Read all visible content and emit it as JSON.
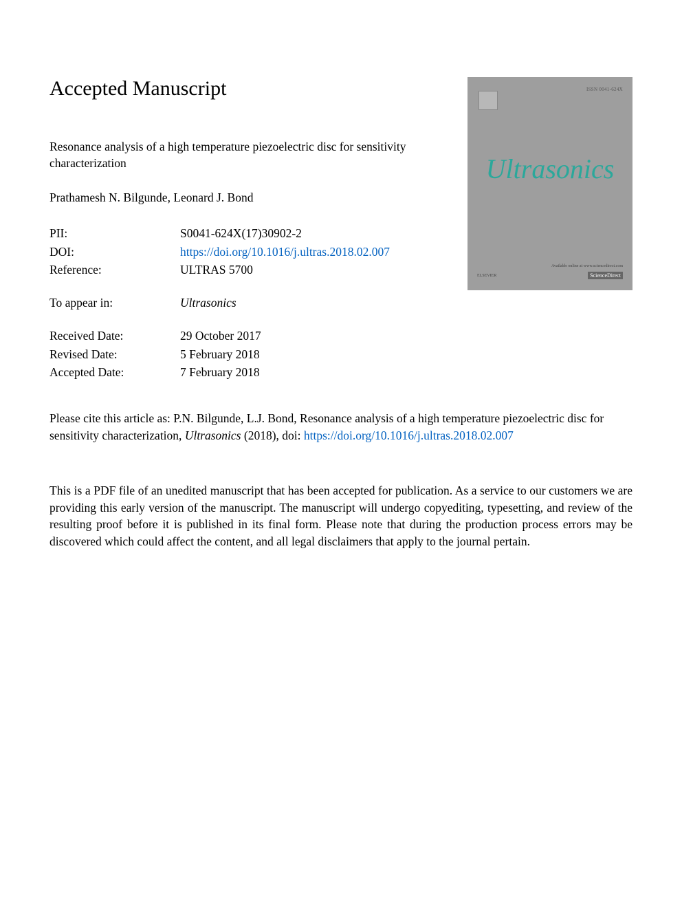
{
  "header": {
    "title": "Accepted Manuscript"
  },
  "article": {
    "title": "Resonance analysis of a high temperature piezoelectric disc for sensitivity characterization",
    "authors": "Prathamesh N. Bilgunde, Leonard J. Bond"
  },
  "meta": {
    "pii": {
      "label": "PII:",
      "value": "S0041-624X(17)30902-2"
    },
    "doi": {
      "label": "DOI:",
      "value": "https://doi.org/10.1016/j.ultras.2018.02.007",
      "is_link": true
    },
    "reference": {
      "label": "Reference:",
      "value": "ULTRAS 5700"
    },
    "to_appear": {
      "label": "To appear in:",
      "value": "Ultrasonics",
      "italic": true
    },
    "received": {
      "label": "Received Date:",
      "value": "29 October 2017"
    },
    "revised": {
      "label": "Revised Date:",
      "value": "5 February 2018"
    },
    "accepted": {
      "label": "Accepted Date:",
      "value": "7 February 2018"
    }
  },
  "citation": {
    "prefix": "Please cite this article as: P.N. Bilgunde, L.J. Bond, Resonance analysis of a high temperature piezoelectric disc for sensitivity characterization, ",
    "journal": "Ultrasonics",
    "year_doi": " (2018), doi: ",
    "doi_link": "https://doi.org/10.1016/j.ultras.2018.02.007"
  },
  "disclaimer": "This is a PDF file of an unedited manuscript that has been accepted for publication. As a service to our customers we are providing this early version of the manuscript. The manuscript will undergo copyediting, typesetting, and review of the resulting proof before it is published in its final form. Please note that during the production process errors may be discovered which could affect the content, and all legal disclaimers that apply to the journal pertain.",
  "cover": {
    "background_color": "#9e9e9e",
    "title": "Ultrasonics",
    "title_color": "#2ba89b",
    "issn": "ISSN 0041-624X",
    "footer_left": "ELSEVIER",
    "footer_right_line1": "Available online at www.sciencedirect.com",
    "footer_right_sd": "ScienceDirect"
  },
  "colors": {
    "text": "#000000",
    "link": "#0563c1",
    "page_bg": "#ffffff"
  },
  "typography": {
    "heading_fontsize_pt": 22,
    "body_fontsize_pt": 13,
    "font_family": "Times New Roman"
  }
}
